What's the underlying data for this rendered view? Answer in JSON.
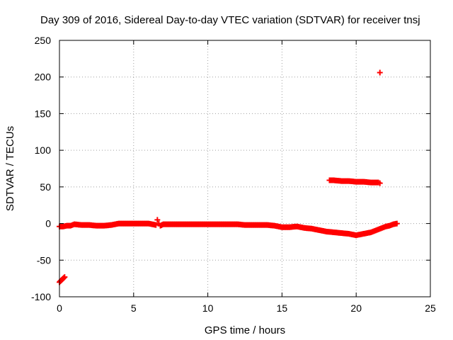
{
  "chart_data": {
    "type": "scatter",
    "title": "Day 309 of 2016, Sidereal Day-to-day VTEC variation (SDTVAR) for receiver tnsj",
    "xlabel": "GPS time / hours",
    "ylabel": "SDTVAR / TECUs",
    "xlim": [
      0,
      25
    ],
    "ylim": [
      -100,
      250
    ],
    "xticks": [
      "0",
      "5",
      "10",
      "15",
      "20",
      "25"
    ],
    "yticks": [
      "-100",
      "-50",
      "0",
      "50",
      "100",
      "150",
      "200",
      "250"
    ],
    "grid": true,
    "marker": "+",
    "color": "#ff0000",
    "series": [
      {
        "x": [
          0.0,
          0.05,
          0.1,
          0.15,
          0.2,
          0.25,
          0.3,
          0.35
        ],
        "y": [
          -80,
          -79,
          -78,
          -77,
          -76,
          -75,
          -74,
          -73
        ]
      },
      {
        "x": [
          0.0,
          0.25,
          0.5,
          0.75,
          1.0,
          1.5,
          2.0,
          2.5,
          3.0,
          3.5,
          4.0,
          4.5,
          5.0,
          5.5,
          6.0,
          6.5,
          6.6,
          6.7,
          6.8,
          7.0,
          7.5,
          8.0,
          8.5,
          9.0,
          9.5,
          10.0,
          10.5,
          11.0,
          11.5,
          12.0,
          12.5,
          13.0,
          13.5,
          14.0,
          14.5,
          15.0,
          15.5,
          16.0,
          16.5,
          17.0,
          17.5,
          18.0,
          18.5,
          19.0,
          19.5,
          20.0,
          20.25,
          20.5,
          20.75,
          21.0,
          21.25,
          21.5,
          21.75,
          22.0,
          22.25,
          22.5,
          22.75
        ],
        "y": [
          -4,
          -4,
          -3,
          -3,
          -1,
          -2,
          -2,
          -3,
          -3,
          -2,
          0,
          0,
          0,
          0,
          0,
          -2,
          5,
          0,
          -3,
          -1,
          -1,
          -1,
          -1,
          -1,
          -1,
          -1,
          -1,
          -1,
          -1,
          -1,
          -2,
          -2,
          -2,
          -2,
          -3,
          -5,
          -5,
          -4,
          -6,
          -7,
          -9,
          -11,
          -12,
          -13,
          -14,
          -16,
          -15,
          -14,
          -13,
          -12,
          -10,
          -8,
          -6,
          -4,
          -3,
          -1,
          0
        ]
      },
      {
        "x": [
          18.2,
          18.5,
          19.0,
          19.5,
          20.0,
          20.5,
          21.0,
          21.5,
          21.6
        ],
        "y": [
          59,
          59,
          58,
          58,
          57,
          57,
          56,
          56,
          55
        ]
      },
      {
        "x": [
          21.6
        ],
        "y": [
          206
        ]
      }
    ]
  }
}
